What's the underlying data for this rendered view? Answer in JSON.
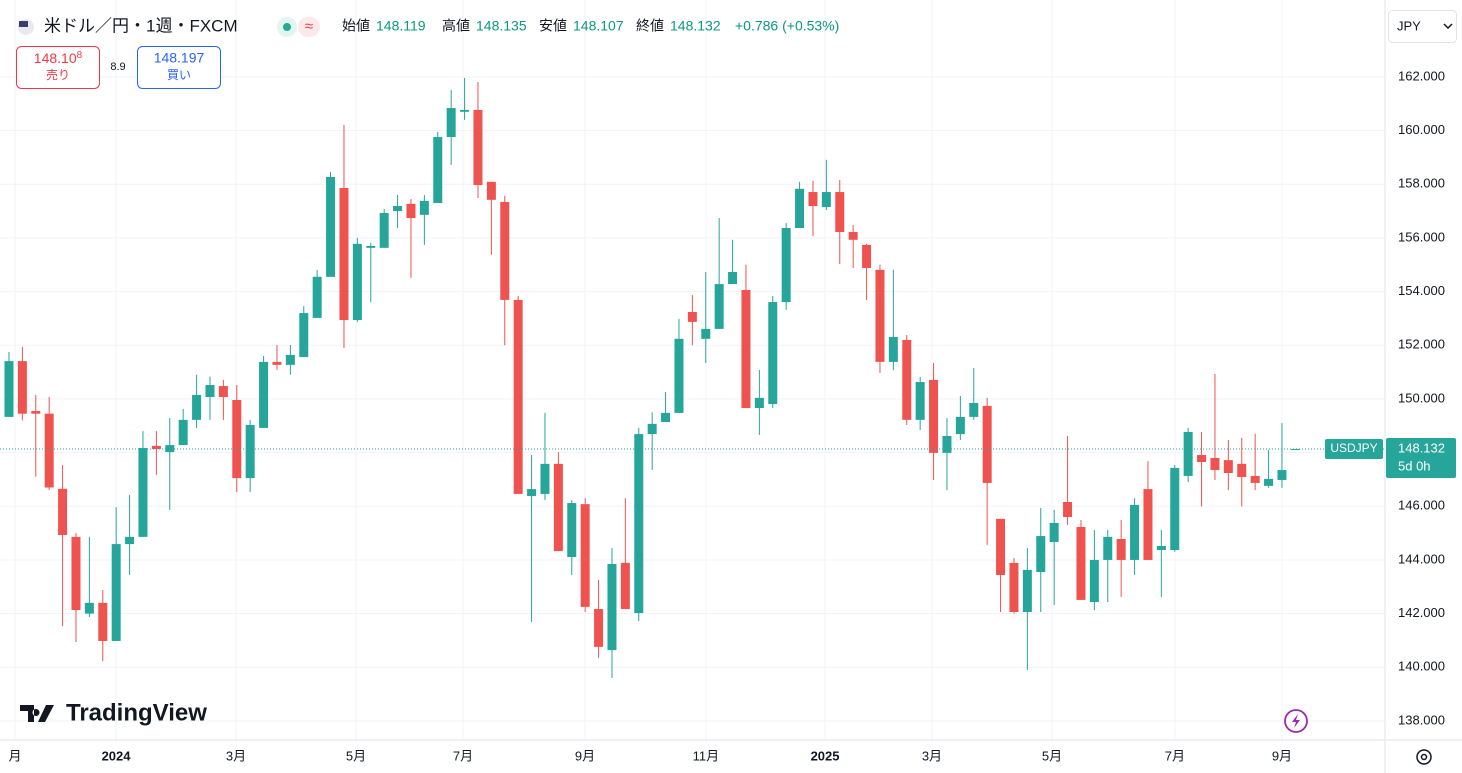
{
  "header": {
    "title": "米ドル／円・1週・FXCM",
    "badge": "≈",
    "ohlc_labels": [
      "始値",
      "高値",
      "安値",
      "終値"
    ],
    "change": "+0.786 (+0.53%)",
    "currency": "JPY",
    "logo": "TradingView"
  },
  "trade": {
    "sell_price": "148.10",
    "sell_pip": "8",
    "sell_label": "売り",
    "spread": "8.9",
    "buy_price": "148.197",
    "buy_label": "買い"
  },
  "price_tag": {
    "symbol": "USDJPY",
    "countdown": "5d 0h"
  },
  "chart_data": {
    "type": "candlestick",
    "up_color": "#26a69a",
    "down_color": "#ef5350",
    "grid": true,
    "open": [
      149.33,
      151.41,
      149.55,
      149.45,
      146.65,
      144.86,
      142.0,
      142.4,
      140.98,
      144.59,
      144.86,
      148.25,
      148.02,
      148.28,
      149.22,
      150.07,
      150.48,
      149.96,
      147.05,
      148.92,
      151.38,
      151.27,
      151.56,
      153.02,
      154.55,
      157.86,
      152.94,
      155.63,
      155.63,
      157.0,
      157.27,
      156.86,
      157.3,
      159.76,
      160.7,
      160.77,
      158.09,
      157.34,
      153.69,
      146.38,
      146.46,
      147.58,
      144.11,
      146.08,
      142.17,
      140.64,
      143.89,
      142.02,
      148.69,
      149.14,
      149.48,
      153.24,
      152.24,
      152.61,
      154.28,
      154.06,
      149.66,
      149.81,
      153.61,
      156.37,
      157.71,
      157.15,
      157.71,
      156.22,
      155.74,
      154.81,
      151.38,
      152.2,
      149.22,
      150.71,
      147.99,
      148.69,
      149.33,
      149.74,
      145.53,
      143.89,
      142.06,
      143.55,
      144.67,
      146.16,
      145.23,
      142.43,
      144.0,
      144.78,
      144.0,
      146.64,
      144.37,
      144.37,
      147.13,
      147.91,
      147.8,
      147.72,
      147.58,
      147.13,
      146.76,
      146.98,
      148.119
    ],
    "high": [
      151.75,
      151.94,
      150.15,
      150.07,
      147.54,
      145.0,
      144.86,
      142.88,
      145.97,
      146.42,
      148.8,
      148.8,
      149.29,
      149.63,
      150.9,
      150.83,
      150.71,
      150.52,
      149.22,
      151.6,
      152.01,
      152.01,
      153.46,
      154.8,
      158.46,
      160.21,
      156.0,
      155.82,
      157.08,
      157.6,
      157.45,
      157.6,
      159.95,
      161.52,
      161.96,
      161.81,
      158.09,
      157.57,
      153.84,
      147.91,
      149.48,
      148.02,
      146.23,
      146.3,
      143.25,
      144.44,
      146.3,
      148.92,
      149.5,
      150.26,
      152.98,
      153.87,
      154.73,
      156.74,
      155.93,
      155.0,
      151.08,
      153.84,
      156.56,
      158.09,
      158.13,
      158.91,
      158.16,
      156.48,
      155.78,
      155.0,
      154.81,
      152.38,
      150.82,
      151.34,
      149.29,
      150.11,
      151.15,
      150.04,
      145.53,
      144.07,
      144.44,
      145.94,
      145.87,
      148.62,
      145.49,
      145.12,
      145.12,
      145.49,
      146.3,
      147.68,
      145.12,
      147.54,
      148.92,
      148.77,
      150.93,
      148.47,
      148.55,
      148.7,
      148.1,
      149.1,
      148.135
    ],
    "low": [
      149.33,
      149.2,
      147.1,
      146.6,
      141.54,
      140.94,
      141.87,
      140.23,
      140.98,
      143.44,
      144.86,
      147.17,
      145.86,
      148.28,
      148.92,
      149.22,
      149.22,
      146.53,
      146.53,
      148.92,
      151.08,
      150.9,
      151.56,
      153.02,
      154.55,
      151.9,
      152.87,
      153.6,
      155.63,
      156.37,
      154.51,
      155.74,
      157.3,
      158.72,
      160.4,
      157.49,
      155.37,
      152.0,
      146.46,
      141.69,
      146.23,
      144.33,
      143.44,
      142.06,
      140.35,
      139.6,
      142.17,
      141.72,
      147.35,
      149.14,
      149.48,
      152.0,
      151.34,
      152.61,
      154.28,
      149.66,
      148.66,
      149.66,
      153.32,
      156.37,
      156.07,
      157.04,
      155.03,
      154.88,
      153.69,
      150.97,
      151.08,
      149.03,
      148.84,
      146.98,
      146.6,
      148.47,
      149.22,
      144.56,
      142.06,
      142.0,
      139.9,
      142.06,
      142.32,
      145.3,
      142.51,
      142.13,
      142.43,
      142.62,
      143.44,
      144.0,
      142.62,
      144.3,
      146.9,
      145.99,
      146.98,
      146.6,
      145.99,
      146.6,
      146.69,
      146.69,
      148.107
    ],
    "close": [
      151.41,
      149.45,
      149.45,
      146.7,
      144.93,
      142.13,
      142.4,
      140.98,
      144.59,
      144.86,
      148.17,
      148.13,
      148.28,
      149.22,
      150.15,
      150.52,
      150.07,
      147.05,
      149.03,
      151.38,
      151.27,
      151.64,
      153.2,
      154.55,
      158.27,
      152.94,
      155.78,
      155.7,
      156.93,
      157.19,
      156.74,
      157.38,
      159.76,
      160.84,
      160.77,
      157.97,
      157.42,
      153.69,
      146.46,
      146.64,
      147.58,
      144.33,
      146.12,
      142.25,
      140.76,
      143.85,
      142.17,
      148.69,
      149.07,
      149.48,
      152.24,
      152.87,
      152.61,
      154.28,
      154.73,
      149.66,
      150.04,
      153.61,
      156.37,
      157.83,
      157.19,
      157.71,
      156.22,
      155.93,
      154.88,
      151.38,
      152.31,
      149.22,
      150.63,
      147.99,
      148.62,
      149.33,
      149.85,
      146.87,
      143.44,
      142.06,
      143.63,
      144.89,
      145.38,
      145.6,
      142.51,
      144.0,
      144.86,
      144.0,
      146.05,
      144.0,
      144.52,
      147.43,
      148.77,
      147.65,
      147.35,
      147.24,
      147.09,
      146.87,
      147.02,
      147.35,
      148.132
    ],
    "xlim": [
      -0.67,
      102.69
    ],
    "xticks": [
      {
        "value": 0.45,
        "label": "月"
      },
      {
        "value": 7.99,
        "label": "2024"
      },
      {
        "value": 16.94,
        "label": "3月"
      },
      {
        "value": 25.9,
        "label": "5月"
      },
      {
        "value": 33.88,
        "label": "7月"
      },
      {
        "value": 42.99,
        "label": "9月"
      },
      {
        "value": 52.01,
        "label": "11月"
      },
      {
        "value": 60.9,
        "label": "2025"
      },
      {
        "value": 68.88,
        "label": "3月"
      },
      {
        "value": 77.84,
        "label": "5月"
      },
      {
        "value": 87.01,
        "label": "7月"
      },
      {
        "value": 95.0,
        "label": "9月"
      }
    ],
    "ylim": [
      137.29,
      164.68
    ],
    "yticks": [
      {
        "value": 138,
        "label": "138.000"
      },
      {
        "value": 140,
        "label": "140.000"
      },
      {
        "value": 142,
        "label": "142.000"
      },
      {
        "value": 144,
        "label": "144.000"
      },
      {
        "value": 146,
        "label": "146.000"
      },
      {
        "value": 148,
        "label": "148.000"
      },
      {
        "value": 150,
        "label": "150.000"
      },
      {
        "value": 152,
        "label": "152.000"
      },
      {
        "value": 154,
        "label": "154.000"
      },
      {
        "value": 156,
        "label": "156.000"
      },
      {
        "value": 158,
        "label": "158.000"
      },
      {
        "value": 160,
        "label": "160.000"
      },
      {
        "value": 162,
        "label": "162.000"
      }
    ]
  }
}
